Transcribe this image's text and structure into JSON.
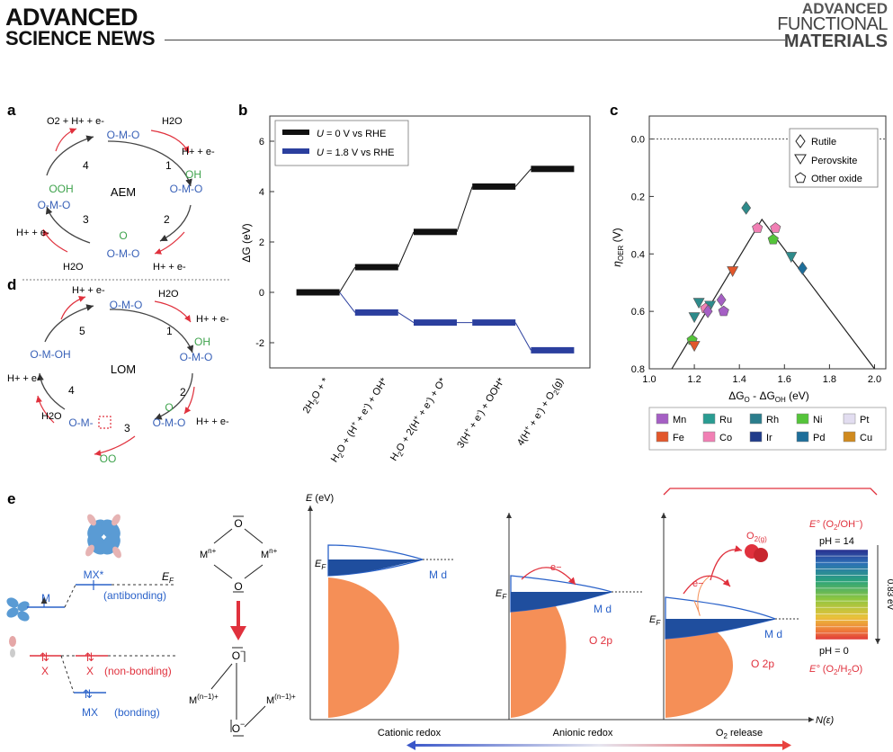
{
  "header": {
    "left_line1": "ADVANCED",
    "left_line2": "SCIENCE NEWS",
    "right_line1": "ADVANCED",
    "right_line2": "FUNCTIONAL",
    "right_line3": "MATERIALS"
  },
  "panel_a": {
    "letter": "a",
    "center": "AEM",
    "steps": [
      "1",
      "2",
      "3",
      "4"
    ],
    "species_top": "O-M-O",
    "species_right": "O-M-O",
    "species_bottom": "O-M-O",
    "species_left": "O-M-O",
    "ads_right": "OH",
    "ads_bottom": "O",
    "ads_left": "OOH",
    "h2o_in_1": "H2O",
    "out_1": "H+ + e-",
    "out_2": "H+ + e-",
    "h2o_in_3": "H2O",
    "out_3": "H+ + e-",
    "out_4": "O2 + H+ + e-"
  },
  "panel_d": {
    "letter": "d",
    "center": "LOM",
    "steps": [
      "1",
      "2",
      "3",
      "4",
      "5"
    ],
    "species_top": "O-M-O",
    "species_right": "O-M-O",
    "species_right2": "O-M-O",
    "species_bottom": "O-M-",
    "species_left": "O-M-OH",
    "ads_right": "OH",
    "ads_right2": "O",
    "o2_out": "OO",
    "h2o_in_1": "H2O",
    "out_1": "H+ + e-",
    "out_2": "H+ + e-",
    "h2o_in_4": "H2O",
    "out_4": "H+ + e-",
    "out_5": "H+ + e-"
  },
  "panel_b": {
    "letter": "b",
    "chart_data": {
      "type": "line",
      "ylabel": "ΔG (eV)",
      "xlabel": "",
      "ylim": [
        -3,
        7
      ],
      "yticks": [
        -2,
        0,
        2,
        4,
        6
      ],
      "categories": [
        "2H2O + *",
        "H2O + (H+ + e-) + OH*",
        "H2O + 2(H+ + e-) + O*",
        "3(H+ + e-) + OOH*",
        "4(H+ + e-) + O2(g)"
      ],
      "category_labels": [
        {
          "main": "2H",
          "sub1": "2",
          "rest": "O + *"
        },
        {
          "main": "H",
          "sub1": "2",
          "rest": "O + (H",
          "sup": "+",
          "rest2": " + e",
          "sup2": "-",
          "rest3": ") + OH*"
        },
        {
          "main": "H",
          "sub1": "2",
          "rest": "O + 2(H",
          "sup": "+",
          "rest2": " + e",
          "sup2": "-",
          "rest3": ") + O*"
        },
        {
          "main": "3(H",
          "sub1": "",
          "rest": "",
          "sup": "+",
          "rest2": " + e",
          "sup2": "-",
          "rest3": ") + OOH*"
        },
        {
          "main": "4(H",
          "sub1": "",
          "rest": "",
          "sup": "+",
          "rest2": " + e",
          "sup2": "-",
          "rest3": ") + O",
          "sub2": "2",
          "rest4": "(g)"
        }
      ],
      "series": [
        {
          "name": "U = 0 V vs RHE",
          "color": "#111111",
          "values": [
            0,
            1.0,
            2.4,
            4.2,
            4.9
          ]
        },
        {
          "name": "U = 1.8 V vs RHE",
          "color": "#2b3f9e",
          "values": [
            0,
            -0.8,
            -1.2,
            -1.2,
            -2.3
          ]
        }
      ],
      "legend": [
        {
          "prefix": "U",
          "text": " = 0 V vs RHE"
        },
        {
          "prefix": "U",
          "text": " = 1.8 V vs RHE"
        }
      ],
      "legend_position": "top-left"
    }
  },
  "panel_c": {
    "letter": "c",
    "chart_data": {
      "type": "scatter",
      "xlabel": "ΔGO - ΔGOH (eV)",
      "xlabel_parts": {
        "a": "ΔG",
        "a_sub": "O",
        "mid": " - ΔG",
        "b_sub": "OH",
        "end": " (eV)"
      },
      "ylabel": "ηOER (V)",
      "ylabel_parts": {
        "a": "η",
        "sub": "OER",
        "end": " (V)"
      },
      "xlim": [
        1.0,
        2.05
      ],
      "ylim": [
        0.8,
        -0.08
      ],
      "xticks": [
        "1.0",
        "1.2",
        "1.4",
        "1.6",
        "1.8",
        "2.0"
      ],
      "yticks": [
        "0.0",
        "0.2",
        "0.4",
        "0.6",
        "0.8"
      ],
      "volcano": [
        [
          1.1,
          0.8
        ],
        [
          1.5,
          0.28
        ],
        [
          2.0,
          0.8
        ]
      ],
      "legend": [
        "Rutile",
        "Perovskite",
        "Other oxide"
      ],
      "legend_position": "top-right",
      "points": [
        {
          "x": 1.43,
          "y": 0.24,
          "shape": "diamond",
          "color": "#2e8b8b"
        },
        {
          "x": 1.56,
          "y": 0.31,
          "shape": "pentagon",
          "color": "#f17fb4"
        },
        {
          "x": 1.48,
          "y": 0.31,
          "shape": "pentagon",
          "color": "#f17fb4"
        },
        {
          "x": 1.55,
          "y": 0.35,
          "shape": "pentagon",
          "color": "#55c43a"
        },
        {
          "x": 1.63,
          "y": 0.41,
          "shape": "triangle",
          "color": "#2e8b8b"
        },
        {
          "x": 1.68,
          "y": 0.45,
          "shape": "diamond",
          "color": "#1e6e9a"
        },
        {
          "x": 1.37,
          "y": 0.46,
          "shape": "triangle",
          "color": "#e2572b"
        },
        {
          "x": 1.32,
          "y": 0.56,
          "shape": "diamond",
          "color": "#a55fc4"
        },
        {
          "x": 1.22,
          "y": 0.57,
          "shape": "triangle",
          "color": "#2e8b8b"
        },
        {
          "x": 1.27,
          "y": 0.58,
          "shape": "triangle",
          "color": "#2e8b8b"
        },
        {
          "x": 1.25,
          "y": 0.59,
          "shape": "pentagon",
          "color": "#f17fb4"
        },
        {
          "x": 1.33,
          "y": 0.6,
          "shape": "pentagon",
          "color": "#a55fc4"
        },
        {
          "x": 1.26,
          "y": 0.6,
          "shape": "diamond",
          "color": "#a55fc4"
        },
        {
          "x": 1.2,
          "y": 0.62,
          "shape": "triangle",
          "color": "#2e8b8b"
        },
        {
          "x": 1.19,
          "y": 0.7,
          "shape": "pentagon",
          "color": "#55c43a"
        },
        {
          "x": 1.2,
          "y": 0.72,
          "shape": "triangle",
          "color": "#e2572b"
        }
      ],
      "element_legend": [
        {
          "name": "Mn",
          "color": "#a55fc4"
        },
        {
          "name": "Ru",
          "color": "#2a9c92"
        },
        {
          "name": "Rh",
          "color": "#2b7d8c"
        },
        {
          "name": "Ni",
          "color": "#55c43a"
        },
        {
          "name": "Pt",
          "color": "#e2ddf0"
        },
        {
          "name": "Fe",
          "color": "#e2572b"
        },
        {
          "name": "Co",
          "color": "#f17fb4"
        },
        {
          "name": "Ir",
          "color": "#1f3b8a"
        },
        {
          "name": "Pd",
          "color": "#1e6e9a"
        },
        {
          "name": "Cu",
          "color": "#d08a1e"
        }
      ]
    }
  },
  "panel_e": {
    "letter": "e",
    "mo": {
      "ef": "E",
      "ef_sub": "F",
      "m": "M",
      "mx_star": "MX*",
      "antibonding": "(antibonding)",
      "x_left": "X",
      "x_right": "X",
      "nonbonding": "(non-bonding)",
      "mx": "MX",
      "bonding": "(bonding)"
    },
    "peroxo": {
      "top_o": "O",
      "bottom_o": "O",
      "m_left": "M",
      "m_left_sup": "n+",
      "m_right": "M",
      "m_right_sup": "n+",
      "o_minus": "O",
      "o_minus2": "O",
      "m_left2": "M",
      "m_left2_sup": "(n−1)+",
      "m_right2": "M",
      "m_right2_sup": "(n−1)+",
      "minus": "−"
    },
    "bands": {
      "y_axis": "E (eV)",
      "x_axis": "N(ε)",
      "ef": "E",
      "ef_sub": "F",
      "md1": "M d",
      "md2": "M d",
      "md3": "M d",
      "o2p2": "O 2p",
      "o2p3": "O 2p",
      "e1": "e−",
      "e2": "e−",
      "o2g": "O",
      "o2g_sub": "2(g)",
      "cap1": "Cationic redox",
      "cap2": "Anionic redox",
      "cap3": "O2 release",
      "cap3_sub": "2"
    },
    "scale": {
      "top_label": "E° (O2/OH−)",
      "top_e": "E°",
      "top_rest": " (O",
      "top_sub": "2",
      "top_end": "/OH",
      "top_sup": "−",
      "top_close": ")",
      "ph14": "pH = 14",
      "ph0": "pH = 0",
      "delta": "0.83 eV",
      "bottom_e": "E°",
      "bottom_rest": " (O",
      "bottom_sub": "2",
      "bottom_end": "/H",
      "bottom_sub2": "2",
      "bottom_close": "O)"
    },
    "colors": {
      "orange": "#f58f57",
      "blue": "#1f4e9e",
      "red": "#e8423f",
      "green": "#4a9e3b"
    }
  }
}
